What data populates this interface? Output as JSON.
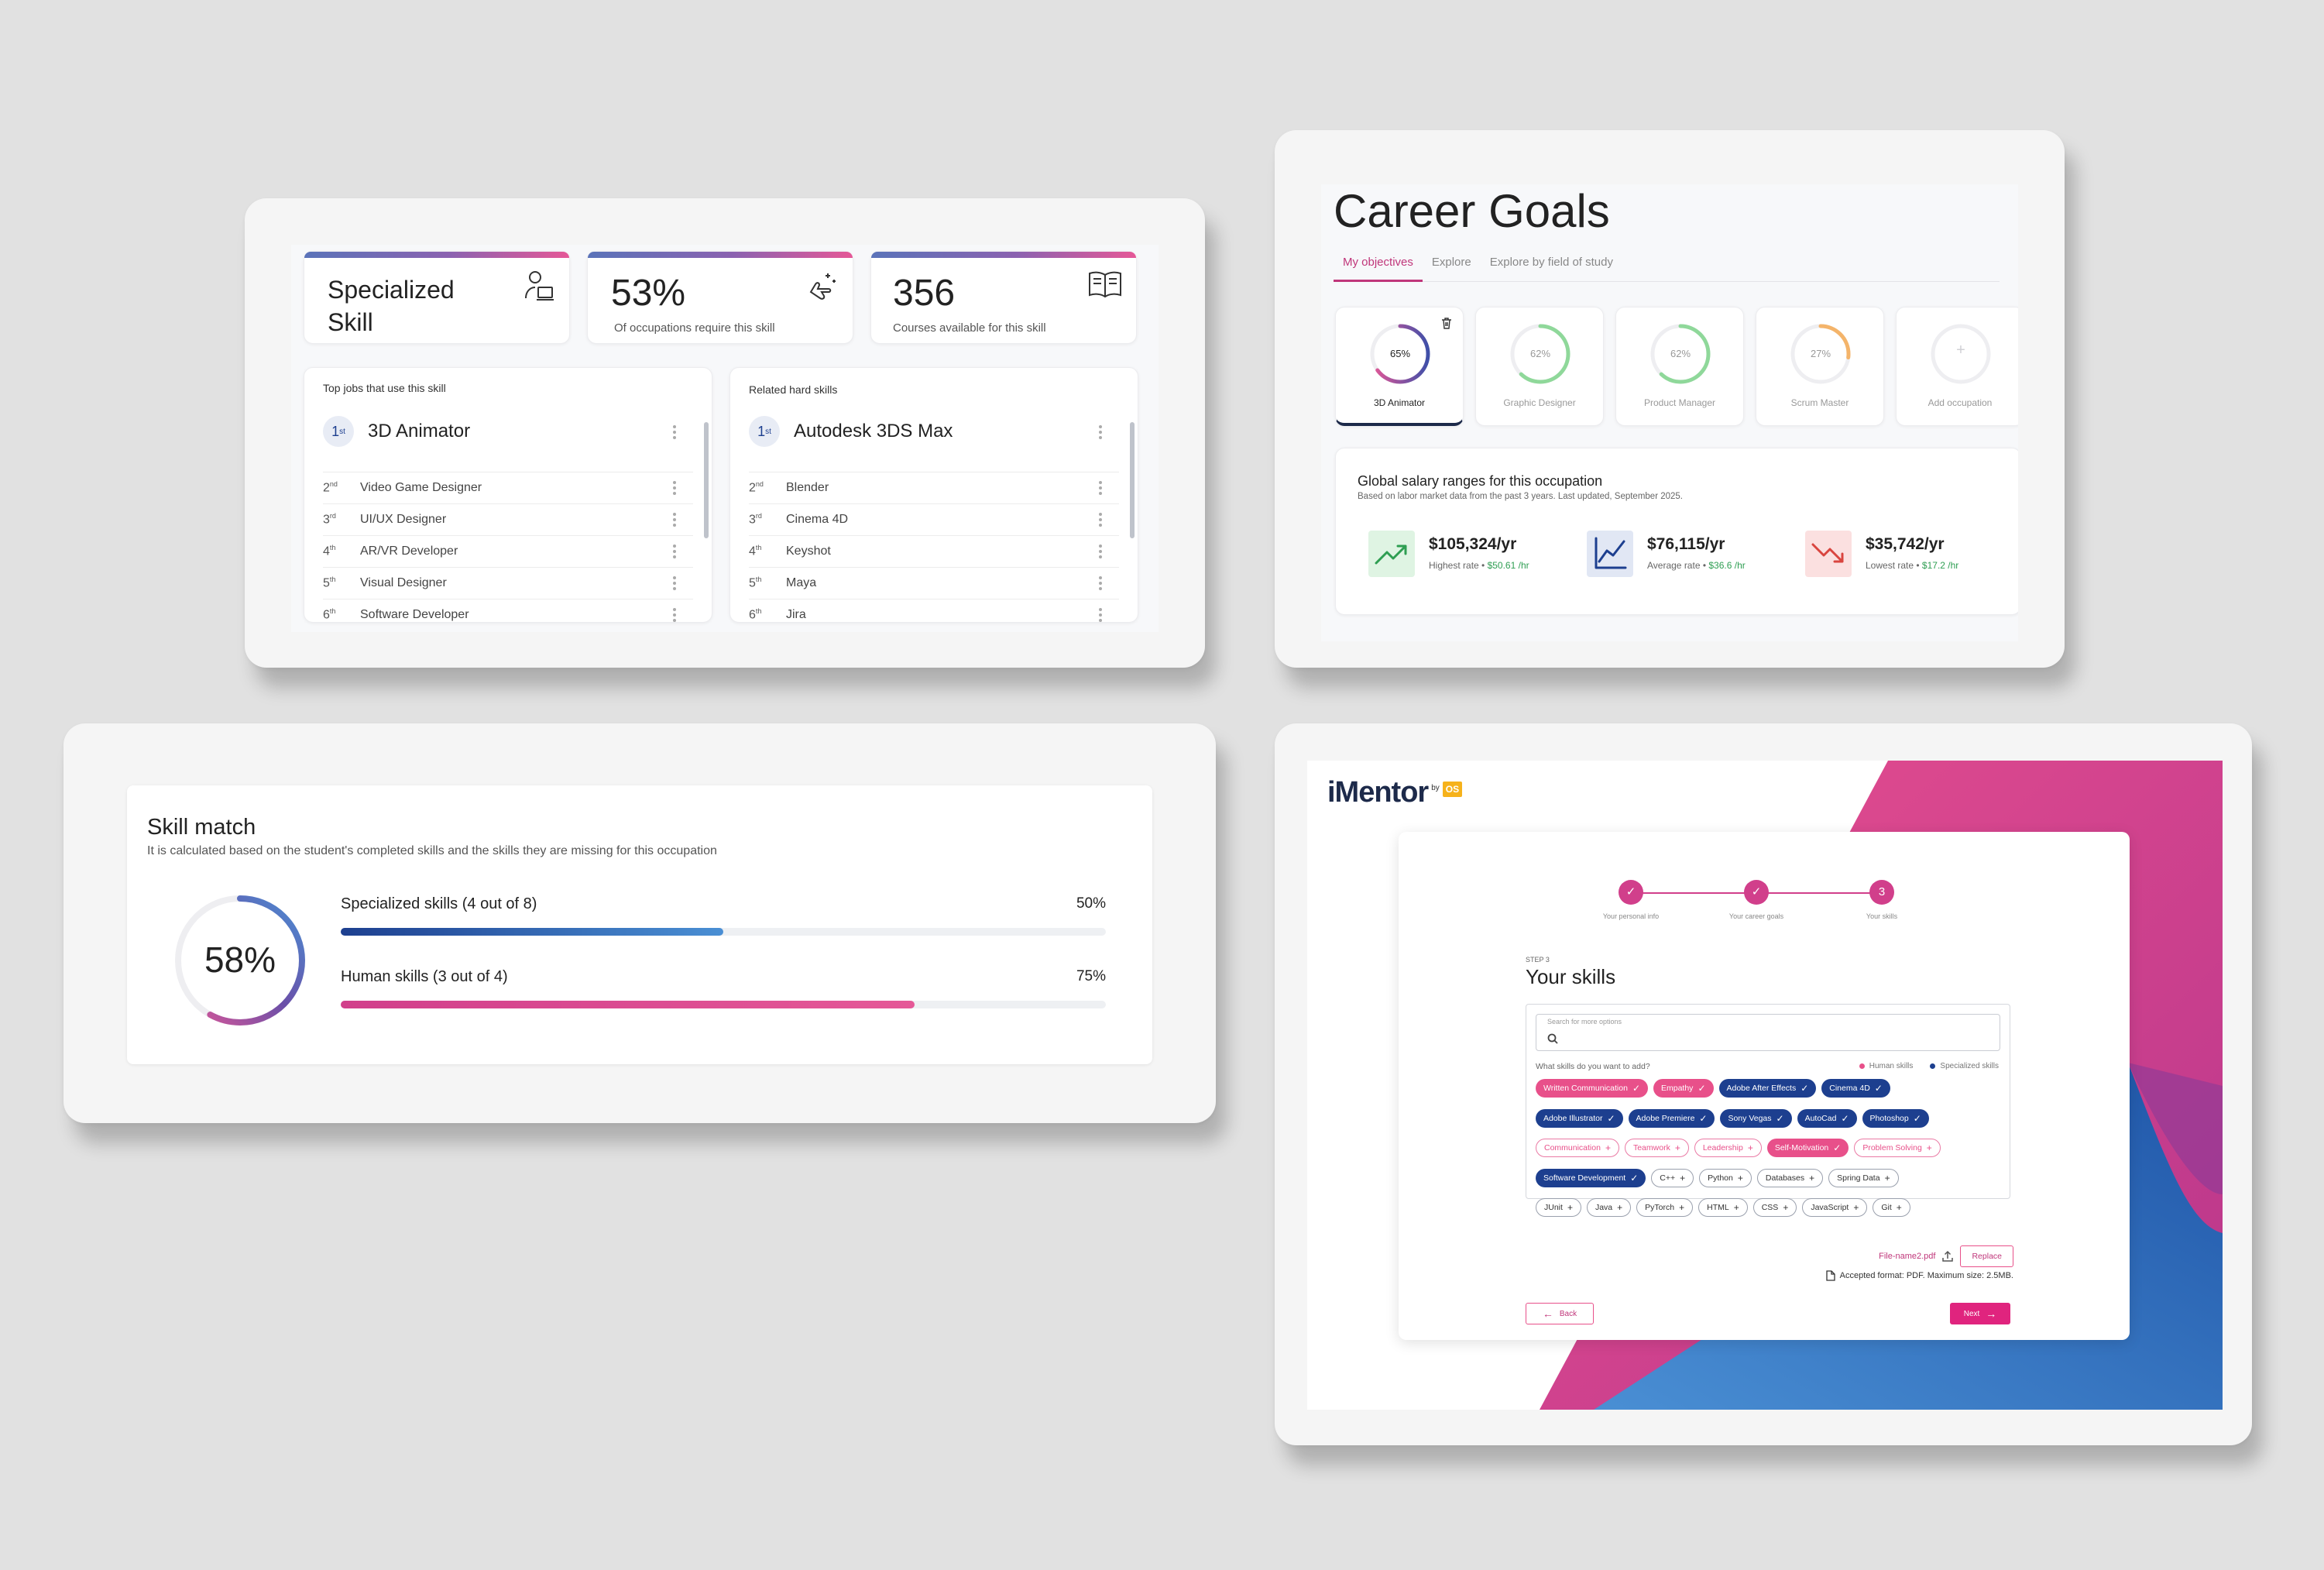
{
  "skill_card": {
    "title_line1": "Specialized",
    "title_line2": "Skill",
    "pct": "53%",
    "pct_caption": "Of occupations require this skill",
    "courses": "356",
    "courses_caption": "Courses available for this skill",
    "jobs": {
      "heading": "Top jobs that use this skill",
      "top_rank": "1",
      "top_sup": "st",
      "top_label": "3D Animator",
      "items": [
        {
          "n": "2",
          "sup": "nd",
          "label": "Video Game Designer"
        },
        {
          "n": "3",
          "sup": "rd",
          "label": "UI/UX Designer"
        },
        {
          "n": "4",
          "sup": "th",
          "label": "AR/VR Developer"
        },
        {
          "n": "5",
          "sup": "th",
          "label": "Visual Designer"
        },
        {
          "n": "6",
          "sup": "th",
          "label": "Software Developer"
        }
      ]
    },
    "related": {
      "heading": "Related hard skills",
      "top_rank": "1",
      "top_sup": "st",
      "top_label": "Autodesk 3DS Max",
      "items": [
        {
          "n": "2",
          "sup": "nd",
          "label": "Blender"
        },
        {
          "n": "3",
          "sup": "rd",
          "label": "Cinema 4D"
        },
        {
          "n": "4",
          "sup": "th",
          "label": "Keyshot"
        },
        {
          "n": "5",
          "sup": "th",
          "label": "Maya"
        },
        {
          "n": "6",
          "sup": "th",
          "label": "Jira"
        }
      ]
    }
  },
  "career_goals": {
    "title": "Career Goals",
    "tabs": [
      "My objectives",
      "Explore",
      "Explore by field of study"
    ],
    "occupations": [
      {
        "pct": "65%",
        "value": 65,
        "label": "3D Animator",
        "color": "#d13f7f",
        "active": true
      },
      {
        "pct": "62%",
        "value": 62,
        "label": "Graphic Designer",
        "color": "#8fd89a"
      },
      {
        "pct": "62%",
        "value": 62,
        "label": "Product Manager",
        "color": "#8fd89a"
      },
      {
        "pct": "27%",
        "value": 27,
        "label": "Scrum Master",
        "color": "#f4b46a"
      }
    ],
    "add_label": "Add occupation",
    "add_glyph": "+",
    "salary": {
      "title": "Global salary ranges for this occupation",
      "subtitle": "Based on labor market data from the past 3 years. Last updated, September 2025.",
      "items": [
        {
          "amount": "$105,324/yr",
          "label": "Highest rate",
          "hourly": "$50.61 /hr",
          "color": "#2e9e52",
          "bg": "#dff4e3"
        },
        {
          "amount": "$76,115/yr",
          "label": "Average rate",
          "hourly": "$36.6 /hr",
          "color": "#1d3f8f",
          "bg": "#e1e7f4"
        },
        {
          "amount": "$35,742/yr",
          "label": "Lowest rate",
          "hourly": "$17.2 /hr",
          "color": "#d9453f",
          "bg": "#fbe0e0"
        }
      ]
    }
  },
  "skill_match": {
    "title": "Skill match",
    "subtitle": "It is calculated based on the student's completed skills and the skills they are missing for this occupation",
    "overall": "58%",
    "overall_value": 58,
    "bars": [
      {
        "label": "Specialized skills (4 out of 8)",
        "pct": "50%",
        "value": 50
      },
      {
        "label": "Human skills (3 out of 4)",
        "pct": "75%",
        "value": 75
      }
    ]
  },
  "imentor": {
    "logo": "iMentor",
    "by": "by",
    "logo_badge": "OS",
    "steps": [
      {
        "label": "Your personal info",
        "mark": "✓"
      },
      {
        "label": "Your career goals",
        "mark": "✓"
      },
      {
        "label": "Your skills",
        "mark": "3"
      }
    ],
    "step_caption": "STEP 3",
    "title": "Your skills",
    "search_placeholder": "Search for more options",
    "question": "What skills do you want to add?",
    "legend_human": "Human skills",
    "legend_specialized": "Specialized skills",
    "chip_rows": [
      [
        {
          "t": "Written Communication",
          "k": "h",
          "m": "✓"
        },
        {
          "t": "Empathy",
          "k": "h",
          "m": "✓"
        },
        {
          "t": "Adobe After Effects",
          "k": "s",
          "m": "✓"
        },
        {
          "t": "Cinema 4D",
          "k": "s",
          "m": "✓"
        }
      ],
      [
        {
          "t": "Adobe Illustrator",
          "k": "s",
          "m": "✓"
        },
        {
          "t": "Adobe Premiere",
          "k": "s",
          "m": "✓"
        },
        {
          "t": "Sony Vegas",
          "k": "s",
          "m": "✓"
        },
        {
          "t": "AutoCad",
          "k": "s",
          "m": "✓"
        },
        {
          "t": "Photoshop",
          "k": "s",
          "m": "✓"
        }
      ],
      [
        {
          "t": "Communication",
          "k": "oh",
          "m": "+"
        },
        {
          "t": "Teamwork",
          "k": "oh",
          "m": "+"
        },
        {
          "t": "Leadership",
          "k": "oh",
          "m": "+"
        },
        {
          "t": "Self-Motivation",
          "k": "h",
          "m": "✓"
        },
        {
          "t": "Problem Solving",
          "k": "oh",
          "m": "+"
        }
      ],
      [
        {
          "t": "Software Development",
          "k": "s",
          "m": "✓"
        },
        {
          "t": "C++",
          "k": "os",
          "m": "+"
        },
        {
          "t": "Python",
          "k": "os",
          "m": "+"
        },
        {
          "t": "Databases",
          "k": "os",
          "m": "+"
        },
        {
          "t": "Spring Data",
          "k": "os",
          "m": "+"
        }
      ],
      [
        {
          "t": "JUnit",
          "k": "os",
          "m": "+"
        },
        {
          "t": "Java",
          "k": "os",
          "m": "+"
        },
        {
          "t": "PyTorch",
          "k": "os",
          "m": "+"
        },
        {
          "t": "HTML",
          "k": "os",
          "m": "+"
        },
        {
          "t": "CSS",
          "k": "os",
          "m": "+"
        },
        {
          "t": "JavaScript",
          "k": "os",
          "m": "+"
        },
        {
          "t": "Git",
          "k": "os",
          "m": "+"
        }
      ]
    ],
    "file_name": "File-name2.pdf",
    "replace_label": "Replace",
    "accepted": "Accepted format: PDF. Maximum size: 2.5MB.",
    "back_label": "Back",
    "next_label": "Next"
  },
  "colors": {
    "pink": "#e8508a",
    "navy": "#1d3f8f",
    "blue": "#4a8fd4"
  }
}
